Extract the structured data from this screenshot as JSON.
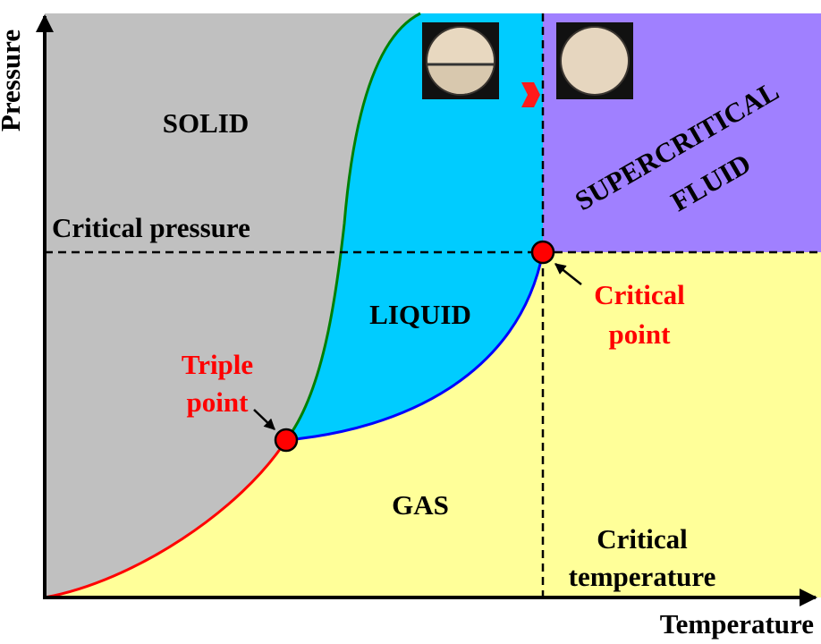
{
  "axes": {
    "y_label": "Pressure",
    "x_label": "Temperature"
  },
  "regions": {
    "solid": "SOLID",
    "liquid": "LIQUID",
    "gas": "GAS",
    "supercritical": [
      "SUPERCRITICAL",
      "FLUID"
    ]
  },
  "lines": {
    "critical_pressure": "Critical pressure",
    "critical_temperature": [
      "Critical",
      "temperature"
    ]
  },
  "points": {
    "triple": [
      "Triple",
      "point"
    ],
    "critical": [
      "Critical",
      "point"
    ]
  }
}
